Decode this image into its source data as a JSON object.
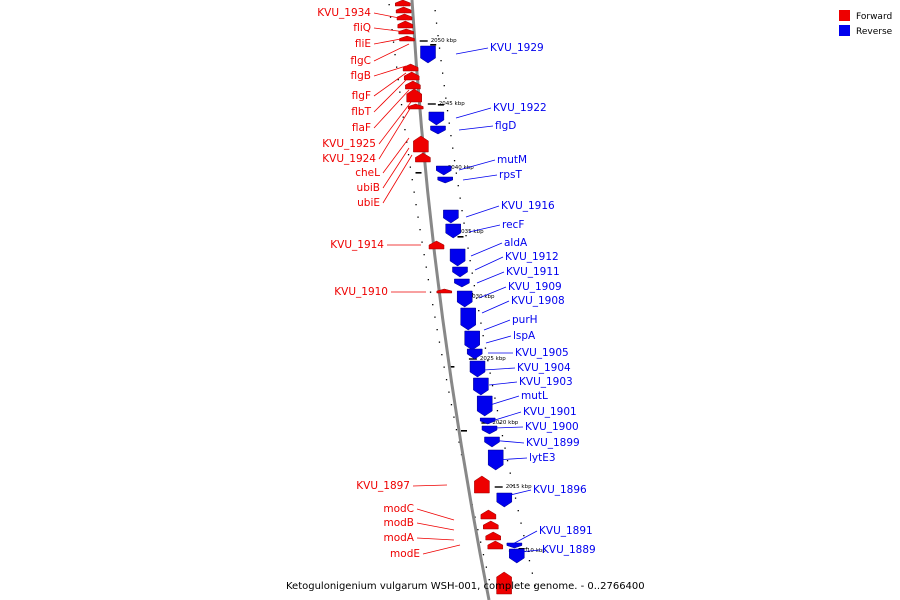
{
  "caption": "Ketogulonigenium vulgarum WSH-001, complete genome. - 0..2766400",
  "legend": [
    {
      "label": "Forward",
      "color": "#ee0000"
    },
    {
      "label": "Reverse",
      "color": "#0000ee"
    }
  ],
  "colors": {
    "forward": "#ee0000",
    "reverse": "#0000ee",
    "backbone": "#777777"
  },
  "ticks": [
    "2050 kbp",
    "2045 kbp",
    "2040 kbp",
    "2035 kbp",
    "2030 kbp",
    "2025 kbp",
    "2020 kbp",
    "2015 kbp",
    "2010 kbp"
  ],
  "forward_genes": [
    "KVU_1934",
    "fliQ",
    "fliE",
    "flgC",
    "flgB",
    "flgF",
    "flbT",
    "flaF",
    "KVU_1925",
    "KVU_1924",
    "cheL",
    "ubiB",
    "ubiE",
    "KVU_1914",
    "KVU_1910",
    "KVU_1897",
    "modC",
    "modB",
    "modA",
    "modE"
  ],
  "reverse_genes": [
    "KVU_1929",
    "KVU_1922",
    "flgD",
    "mutM",
    "rpsT",
    "KVU_1916",
    "recF",
    "aldA",
    "KVU_1912",
    "KVU_1911",
    "KVU_1909",
    "KVU_1908",
    "purH",
    "lspA",
    "KVU_1905",
    "KVU_1904",
    "KVU_1903",
    "mutL",
    "KVU_1901",
    "KVU_1900",
    "KVU_1899",
    "lytE3",
    "KVU_1896",
    "KVU_1891",
    "KVU_1889"
  ]
}
